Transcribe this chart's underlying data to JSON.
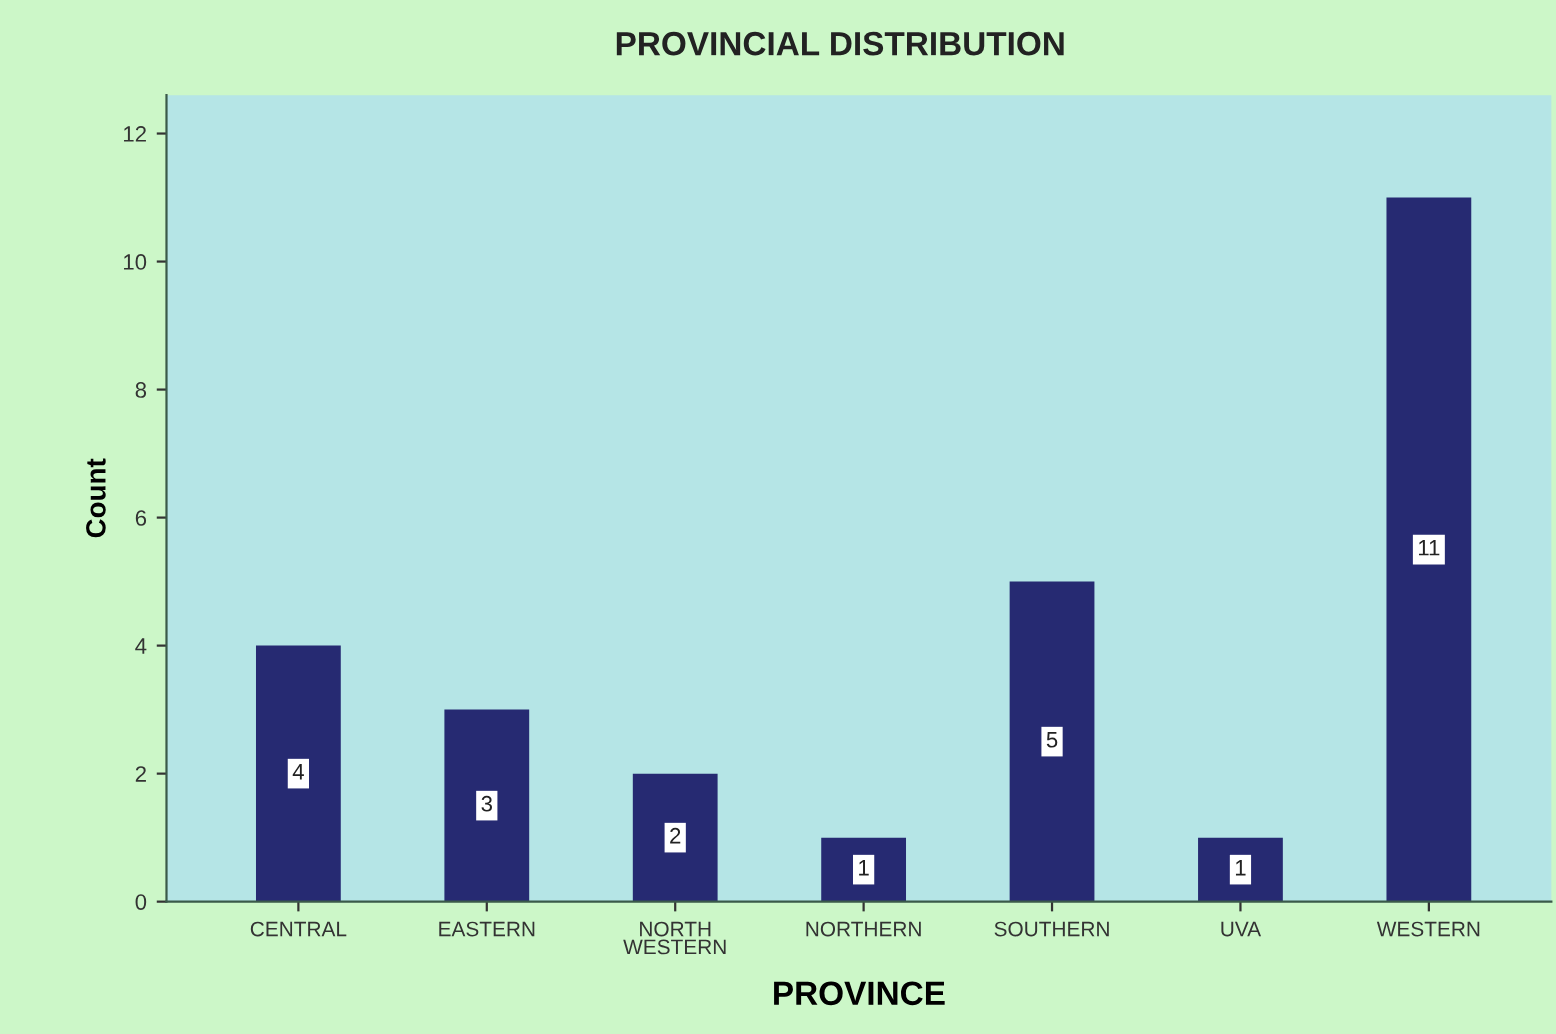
{
  "chart_data": {
    "type": "bar",
    "title": "PROVINCIAL DISTRIBUTION",
    "xlabel": "PROVINCE",
    "ylabel": "Count",
    "categories": [
      "CENTRAL",
      "EASTERN",
      "NORTH\nWESTERN",
      "NORTHERN",
      "SOUTHERN",
      "UVA",
      "WESTERN"
    ],
    "values": [
      4,
      3,
      2,
      1,
      5,
      1,
      11
    ],
    "color": "#262a72",
    "ylim": [
      0,
      12.6
    ],
    "yticks": [
      0,
      2,
      4,
      6,
      8,
      10,
      12
    ],
    "grid": false,
    "data_labels": true
  }
}
